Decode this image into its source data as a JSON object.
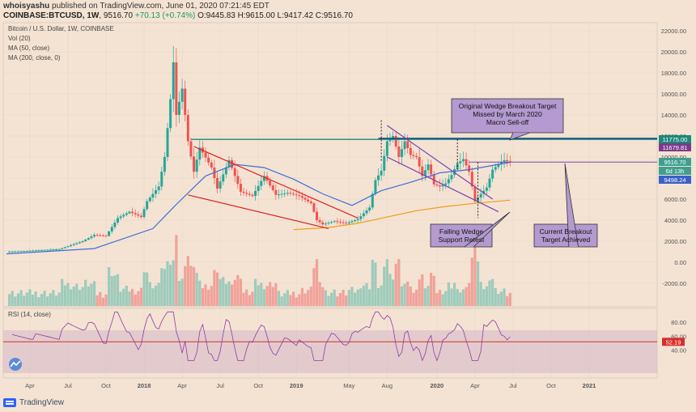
{
  "header": {
    "author": "whoisyashu",
    "published": "published on TradingView.com, June 01, 2020 07:21:45 EDT",
    "symbol": "COINBASE:BTCUSD, 1W",
    "last": "9516.70",
    "change": "+70.13 (+0.74%)",
    "ohlc": "O:9445.83 H:9615.00 L:9417.42 C:9516.70"
  },
  "chart_data": {
    "type": "candlestick",
    "title": "Bitcoin / U.S. Dollar, 1W, COINBASE",
    "indicators": [
      "Vol (20)",
      "MA (50, close)",
      "MA (200, close, 0)"
    ],
    "price_axis_ticks": [
      "22000.00",
      "20000.00",
      "18000.00",
      "16000.00",
      "14000.00",
      "12000.00",
      "10000.00",
      "8000.00",
      "6000.00",
      "4000.00",
      "2000.00",
      "0.00",
      "-2000.00"
    ],
    "price_labels": [
      {
        "value": "11775.00",
        "color": "#1b8a7a"
      },
      {
        "value": "11679.81",
        "color": "#7a3b8c"
      },
      {
        "value": "9516.70",
        "color": "#3f9f8f"
      },
      {
        "value": "6d 13h",
        "color": "#3f9f8f"
      },
      {
        "value": "9498.24",
        "color": "#3b5fc7"
      }
    ],
    "x_ticks": [
      "Apr",
      "Jul",
      "Oct",
      "2018",
      "Apr",
      "Jul",
      "Oct",
      "2019",
      "May",
      "Aug",
      "2020",
      "Apr",
      "Jul",
      "Oct",
      "2021"
    ],
    "price_points": [
      {
        "t": 0,
        "v": 1000
      },
      {
        "t": 8,
        "v": 1100
      },
      {
        "t": 18,
        "v": 1250
      },
      {
        "t": 26,
        "v": 2000
      },
      {
        "t": 30,
        "v": 2600
      },
      {
        "t": 34,
        "v": 2500
      },
      {
        "t": 38,
        "v": 4200
      },
      {
        "t": 42,
        "v": 4800
      },
      {
        "t": 46,
        "v": 4300
      },
      {
        "t": 48,
        "v": 5800
      },
      {
        "t": 52,
        "v": 7200
      },
      {
        "t": 54,
        "v": 10000
      },
      {
        "t": 56,
        "v": 15500
      },
      {
        "t": 57,
        "v": 19000
      },
      {
        "t": 58,
        "v": 14000
      },
      {
        "t": 60,
        "v": 16500
      },
      {
        "t": 62,
        "v": 11500
      },
      {
        "t": 64,
        "v": 8600
      },
      {
        "t": 66,
        "v": 10900
      },
      {
        "t": 70,
        "v": 9000
      },
      {
        "t": 72,
        "v": 7000
      },
      {
        "t": 76,
        "v": 9700
      },
      {
        "t": 80,
        "v": 6700
      },
      {
        "t": 84,
        "v": 6300
      },
      {
        "t": 88,
        "v": 8200
      },
      {
        "t": 92,
        "v": 6400
      },
      {
        "t": 96,
        "v": 6600
      },
      {
        "t": 100,
        "v": 6300
      },
      {
        "t": 104,
        "v": 5600
      },
      {
        "t": 106,
        "v": 4000
      },
      {
        "t": 108,
        "v": 3600
      },
      {
        "t": 112,
        "v": 3900
      },
      {
        "t": 116,
        "v": 3700
      },
      {
        "t": 120,
        "v": 4100
      },
      {
        "t": 124,
        "v": 5200
      },
      {
        "t": 126,
        "v": 7800
      },
      {
        "t": 128,
        "v": 8700
      },
      {
        "t": 130,
        "v": 11500
      },
      {
        "t": 132,
        "v": 12000
      },
      {
        "t": 134,
        "v": 10000
      },
      {
        "t": 136,
        "v": 11500
      },
      {
        "t": 138,
        "v": 10200
      },
      {
        "t": 140,
        "v": 10000
      },
      {
        "t": 142,
        "v": 8200
      },
      {
        "t": 144,
        "v": 9300
      },
      {
        "t": 146,
        "v": 7400
      },
      {
        "t": 148,
        "v": 7200
      },
      {
        "t": 150,
        "v": 7500
      },
      {
        "t": 152,
        "v": 8300
      },
      {
        "t": 154,
        "v": 9400
      },
      {
        "t": 156,
        "v": 9800
      },
      {
        "t": 158,
        "v": 8600
      },
      {
        "t": 160,
        "v": 5800
      },
      {
        "t": 162,
        "v": 6500
      },
      {
        "t": 164,
        "v": 7100
      },
      {
        "t": 166,
        "v": 8800
      },
      {
        "t": 168,
        "v": 9300
      },
      {
        "t": 170,
        "v": 9700
      },
      {
        "t": 172,
        "v": 9517
      }
    ],
    "ma50": [
      {
        "t": 0,
        "v": 800
      },
      {
        "t": 30,
        "v": 1300
      },
      {
        "t": 50,
        "v": 3200
      },
      {
        "t": 58,
        "v": 5500
      },
      {
        "t": 68,
        "v": 8200
      },
      {
        "t": 78,
        "v": 9300
      },
      {
        "t": 88,
        "v": 9000
      },
      {
        "t": 98,
        "v": 7900
      },
      {
        "t": 108,
        "v": 6500
      },
      {
        "t": 118,
        "v": 5400
      },
      {
        "t": 128,
        "v": 6800
      },
      {
        "t": 138,
        "v": 7600
      },
      {
        "t": 148,
        "v": 8500
      },
      {
        "t": 158,
        "v": 8800
      },
      {
        "t": 172,
        "v": 9498
      }
    ],
    "ma200": [
      {
        "t": 98,
        "v": 3100
      },
      {
        "t": 110,
        "v": 3300
      },
      {
        "t": 120,
        "v": 3700
      },
      {
        "t": 130,
        "v": 4300
      },
      {
        "t": 140,
        "v": 4900
      },
      {
        "t": 150,
        "v": 5300
      },
      {
        "t": 160,
        "v": 5600
      },
      {
        "t": 172,
        "v": 5900
      }
    ],
    "volume_max": 2600,
    "rsi_label": "RSI (14, close)",
    "rsi_ticks": [
      "80.00",
      "60.00",
      "40.00"
    ],
    "rsi_last": "52.19",
    "annotations": {
      "callout_top": [
        "Original Wedge Breakout Target",
        "Missed by March 2020",
        "Macro Sell-off"
      ],
      "callout_mid": [
        "Falling Wedge",
        "Support Retest"
      ],
      "callout_right": [
        "Current Breakout",
        "Target Achieved"
      ]
    }
  },
  "footer": {
    "brand": "TradingView"
  }
}
